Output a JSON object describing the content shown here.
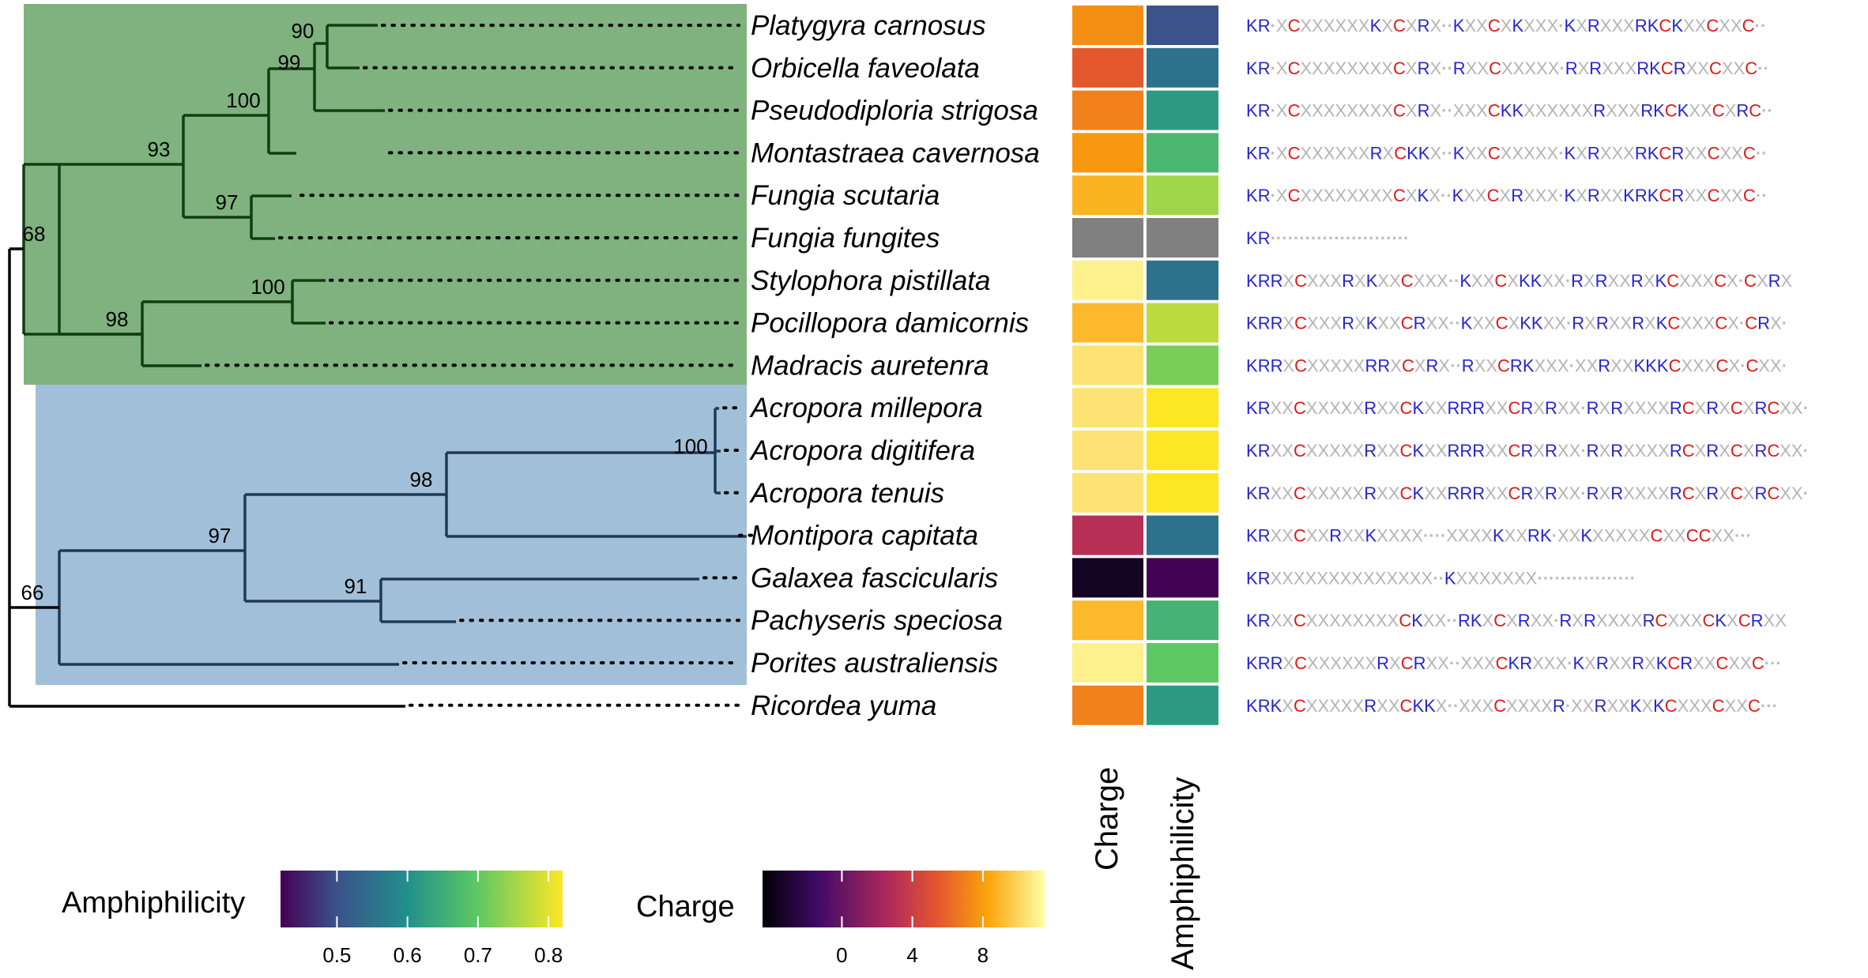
{
  "tree": {
    "bootstrap_values": [
      "68",
      "93",
      "100",
      "99",
      "90",
      "97",
      "98",
      "100",
      "66",
      "97",
      "98",
      "100",
      "91"
    ],
    "clade_colors": {
      "green": "#7fb27e",
      "blue": "#a2bfd9",
      "green_line": "#123d12",
      "blue_line": "#1f3a56"
    }
  },
  "species": [
    {
      "name": "Platygyra carnosus",
      "charge": 7.5,
      "amph": 0.5,
      "seq": "KR·XCXXXXXXKXCXRX··KXXCXKXXX·KXRXXXRKCKXXCXXC··"
    },
    {
      "name": "Orbicella faveolata",
      "charge": 5.5,
      "amph": 0.55,
      "seq": "KR·XCXXXXXXXXCXRX··RXXCXXXXX·RXRXXXRKCRXXCXXC··"
    },
    {
      "name": "Pseudodiploria strigosa",
      "charge": 7.0,
      "amph": 0.62,
      "seq": "KR·XCXXXXXXXXCXRX··XXXCKKXXXXXXRXXXRKCKXXCXRC··"
    },
    {
      "name": "Montastraea cavernosa",
      "charge": 7.8,
      "amph": 0.67,
      "seq": "KR·XCXXXXXXRXCKKX··KXXCXXXXX·KXRXXXRKCRXXCXXC··"
    },
    {
      "name": "Fungia scutaria",
      "charge": 8.8,
      "amph": 0.75,
      "seq": "KR·XCXXXXXXXXCXKX··KXXCXRXXX·KXRXXKRKCRXXCXXC··"
    },
    {
      "name": "Fungia fungites",
      "charge": null,
      "amph": null,
      "seq": "KR························"
    },
    {
      "name": "Stylophora pistillata",
      "charge": 11.0,
      "amph": 0.55,
      "seq": "KRRXCXXXRXKXXCXXX··KXXCXKKXX·RXRXXRXKCXXXCX·CXRX"
    },
    {
      "name": "Pocillopora damicornis",
      "charge": 9.0,
      "amph": 0.77,
      "seq": "KRRXCXXXRXKXXCRXX··KXXCXKKXX·RXRXXRXKCXXXCX·CRX·"
    },
    {
      "name": "Madracis auretenra",
      "charge": 10.5,
      "amph": 0.72,
      "seq": "KRRXCXXXXXRRXCXRX··RXXCRKXXX·XXRXXKKKCXXXCX·CXX·"
    },
    {
      "name": "Acropora millepora",
      "charge": 10.5,
      "amph": 0.82,
      "seq": "KRXXCXXXXXRXXCKXXRRRXXCRXRXX·RXRXXXXRCXRXCXRCXX·"
    },
    {
      "name": "Acropora digitifera",
      "charge": 10.5,
      "amph": 0.82,
      "seq": "KRXXCXXXXXRXXCKXXRRRXXCRXRXX·RXRXXXXRCXRXCXRCXX·"
    },
    {
      "name": "Acropora tenuis",
      "charge": 10.5,
      "amph": 0.82,
      "seq": "KRXXCXXXXXRXXCKXXRRRXXCRXRXX·RXRXXXXRCXRXCXRCXX·"
    },
    {
      "name": "Montipora capitata",
      "charge": 3.0,
      "amph": 0.55,
      "seq": "KRXXCXXRXXKXXXX····XXXXKXXRK·XXKXXXXXCXXCCXX···"
    },
    {
      "name": "Galaxea fascicularis",
      "charge": -3.5,
      "amph": 0.42,
      "seq": "KRXXXXXXXXXXXXXX··KXXXXXXX·················"
    },
    {
      "name": "Pachyseris speciosa",
      "charge": 9.0,
      "amph": 0.66,
      "seq": "KRXXCXXXXXXXXCKXX··RKXCXRXX·RXRXXXXRCXXXCKXCRXX"
    },
    {
      "name": "Porites australiensis",
      "charge": 11.0,
      "amph": 0.7,
      "seq": "KRRXCXXXXXXRXCRXX··XXXCKRXXX·KXRXXRXKCRXXCXXC···"
    },
    {
      "name": "Ricordea yuma",
      "charge": 7.0,
      "amph": 0.62,
      "seq": "KRKXCXXXXXRXXCKKX··XXXCXXXXR·XXRXXKXKCXXXCXXC···"
    }
  ],
  "columns": {
    "charge": "Charge",
    "amph": "Amphiphilicity"
  },
  "legend_amph": {
    "title": "Amphiphilicity",
    "ticks": [
      "0.5",
      "0.6",
      "0.7",
      "0.8"
    ],
    "tick_values": [
      0.5,
      0.6,
      0.7,
      0.8
    ],
    "min": 0.42,
    "max": 0.82
  },
  "legend_charge": {
    "title": "Charge",
    "ticks": [
      "0",
      "4",
      "8"
    ],
    "tick_values": [
      0,
      4,
      8
    ],
    "min": -4.5,
    "max": 11.5
  },
  "colors": {
    "K": "#2525d0",
    "R": "#2525d0",
    "C": "#e01818",
    "X": "#b4b4b4",
    "dot": "#bcbcbc",
    "missing": "#808080"
  }
}
